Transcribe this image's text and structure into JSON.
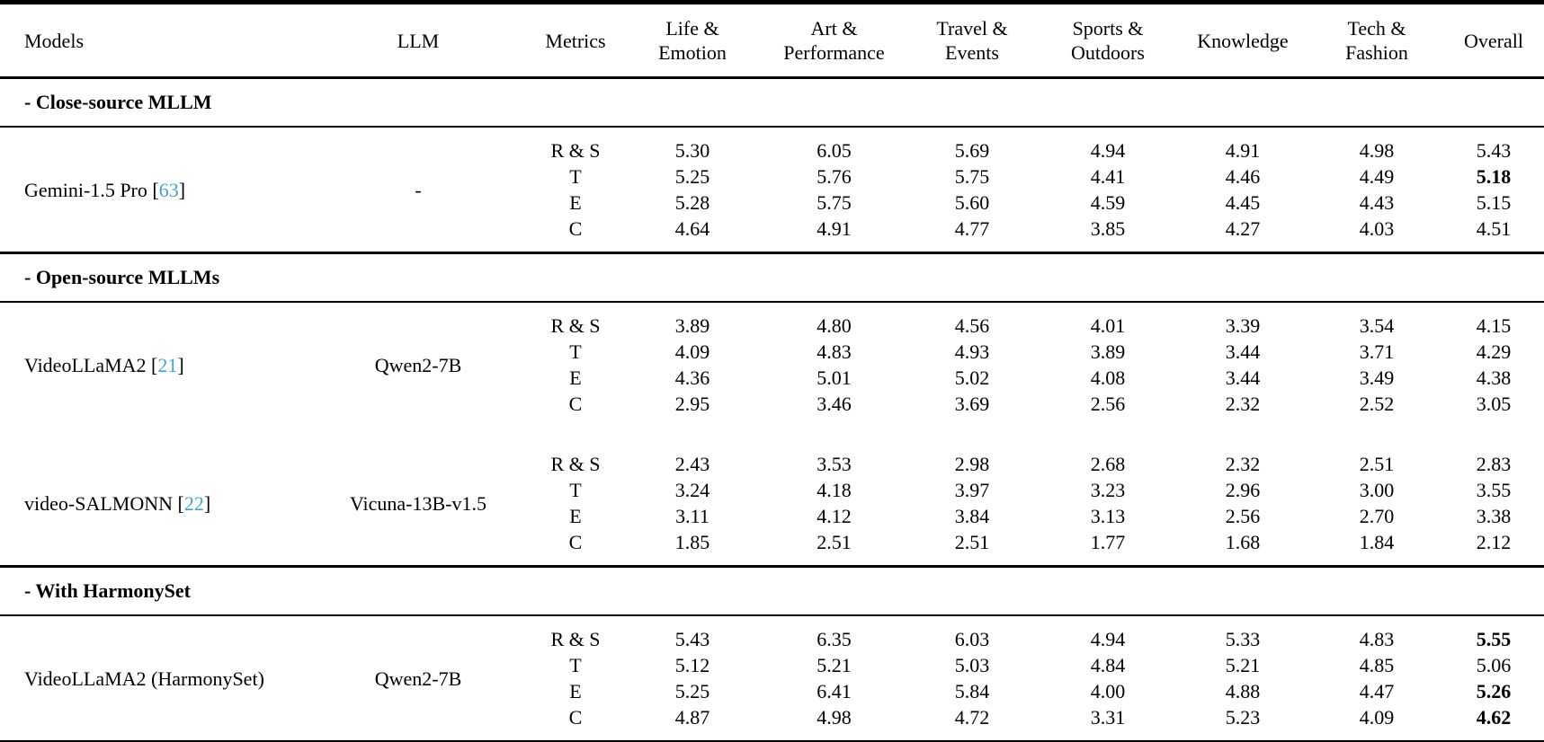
{
  "colors": {
    "background": "#ffffff",
    "text": "#000000",
    "rule": "#000000",
    "citation_link": "#3FA2DC"
  },
  "header": {
    "columns": [
      "Models",
      "LLM",
      "Metrics",
      "Life &\nEmotion",
      "Art &\nPerformance",
      "Travel &\nEvents",
      "Sports &\nOutdoors",
      "Knowledge",
      "Tech &\nFashion",
      "Overall"
    ]
  },
  "sections": [
    {
      "title": "- Close-source MLLM",
      "blocks": [
        {
          "model": "Gemini-1.5 Pro",
          "citation": "63",
          "llm": "-",
          "rows": [
            {
              "metric": "R & S",
              "values": [
                "5.30",
                "6.05",
                "5.69",
                "4.94",
                "4.91",
                "4.98",
                "5.43"
              ],
              "bold_cols": []
            },
            {
              "metric": "T",
              "values": [
                "5.25",
                "5.76",
                "5.75",
                "4.41",
                "4.46",
                "4.49",
                "5.18"
              ],
              "bold_cols": [
                6
              ]
            },
            {
              "metric": "E",
              "values": [
                "5.28",
                "5.75",
                "5.60",
                "4.59",
                "4.45",
                "4.43",
                "5.15"
              ],
              "bold_cols": []
            },
            {
              "metric": "C",
              "values": [
                "4.64",
                "4.91",
                "4.77",
                "3.85",
                "4.27",
                "4.03",
                "4.51"
              ],
              "bold_cols": []
            }
          ]
        }
      ]
    },
    {
      "title": "- Open-source MLLMs",
      "blocks": [
        {
          "model": "VideoLLaMA2",
          "citation": "21",
          "llm": "Qwen2-7B",
          "rows": [
            {
              "metric": "R & S",
              "values": [
                "3.89",
                "4.80",
                "4.56",
                "4.01",
                "3.39",
                "3.54",
                "4.15"
              ],
              "bold_cols": []
            },
            {
              "metric": "T",
              "values": [
                "4.09",
                "4.83",
                "4.93",
                "3.89",
                "3.44",
                "3.71",
                "4.29"
              ],
              "bold_cols": []
            },
            {
              "metric": "E",
              "values": [
                "4.36",
                "5.01",
                "5.02",
                "4.08",
                "3.44",
                "3.49",
                "4.38"
              ],
              "bold_cols": []
            },
            {
              "metric": "C",
              "values": [
                "2.95",
                "3.46",
                "3.69",
                "2.56",
                "2.32",
                "2.52",
                "3.05"
              ],
              "bold_cols": []
            }
          ]
        },
        {
          "model": "video-SALMONN",
          "citation": "22",
          "llm": "Vicuna-13B-v1.5",
          "rows": [
            {
              "metric": "R & S",
              "values": [
                "2.43",
                "3.53",
                "2.98",
                "2.68",
                "2.32",
                "2.51",
                "2.83"
              ],
              "bold_cols": []
            },
            {
              "metric": "T",
              "values": [
                "3.24",
                "4.18",
                "3.97",
                "3.23",
                "2.96",
                "3.00",
                "3.55"
              ],
              "bold_cols": []
            },
            {
              "metric": "E",
              "values": [
                "3.11",
                "4.12",
                "3.84",
                "3.13",
                "2.56",
                "2.70",
                "3.38"
              ],
              "bold_cols": []
            },
            {
              "metric": "C",
              "values": [
                "1.85",
                "2.51",
                "2.51",
                "1.77",
                "1.68",
                "1.84",
                "2.12"
              ],
              "bold_cols": []
            }
          ]
        }
      ]
    },
    {
      "title": "- With HarmonySet",
      "blocks": [
        {
          "model": "VideoLLaMA2 (HarmonySet)",
          "citation": null,
          "llm": "Qwen2-7B",
          "rows": [
            {
              "metric": "R & S",
              "values": [
                "5.43",
                "6.35",
                "6.03",
                "4.94",
                "5.33",
                "4.83",
                "5.55"
              ],
              "bold_cols": [
                6
              ]
            },
            {
              "metric": "T",
              "values": [
                "5.12",
                "5.21",
                "5.03",
                "4.84",
                "5.21",
                "4.85",
                "5.06"
              ],
              "bold_cols": []
            },
            {
              "metric": "E",
              "values": [
                "5.25",
                "6.41",
                "5.84",
                "4.00",
                "4.88",
                "4.47",
                "5.26"
              ],
              "bold_cols": [
                6
              ]
            },
            {
              "metric": "C",
              "values": [
                "4.87",
                "4.98",
                "4.72",
                "3.31",
                "5.23",
                "4.09",
                "4.62"
              ],
              "bold_cols": [
                6
              ]
            }
          ]
        }
      ]
    }
  ]
}
